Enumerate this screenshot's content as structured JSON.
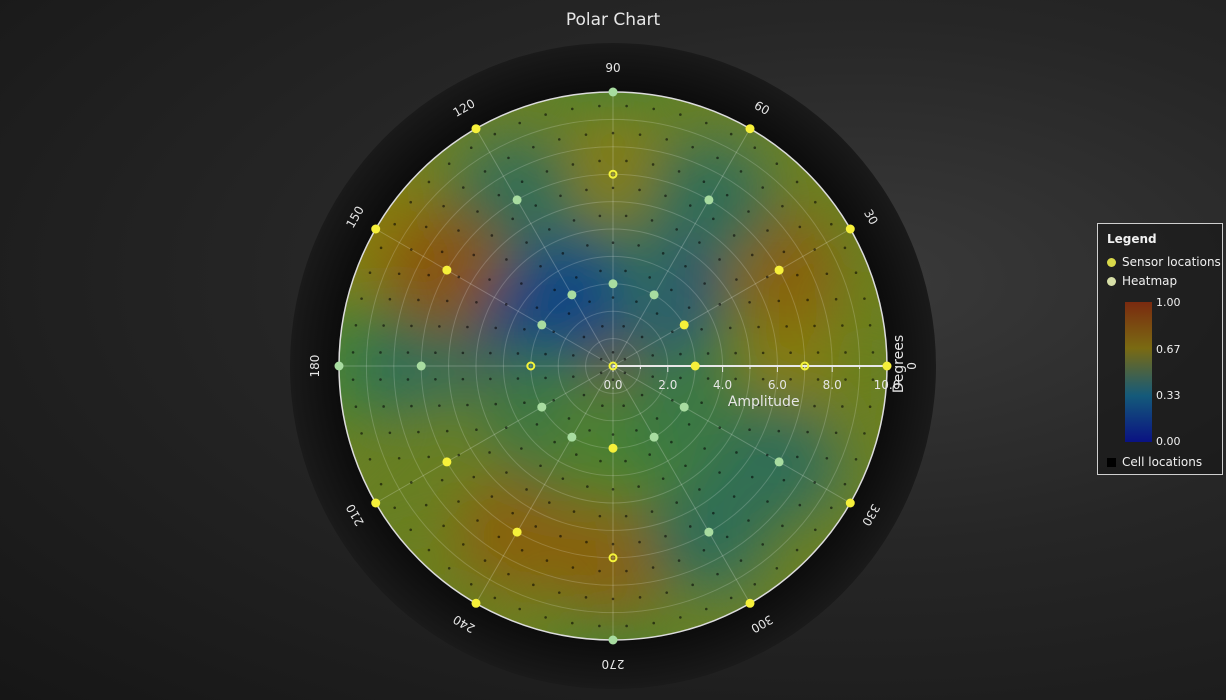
{
  "chart_data": {
    "type": "heatmap",
    "subtype": "polar",
    "title": "Polar Chart",
    "radial_axis": {
      "label": "Amplitude",
      "range": [
        0,
        10
      ],
      "ticks": [
        "0.0",
        "2.0",
        "4.0",
        "6.0",
        "8.0",
        "10.0"
      ]
    },
    "angular_axis": {
      "label": "Degrees",
      "ticks": [
        "0",
        "30",
        "60",
        "90",
        "120",
        "150",
        "180",
        "210",
        "240",
        "270",
        "300",
        "330"
      ],
      "tick_values": [
        0,
        30,
        60,
        90,
        120,
        150,
        180,
        210,
        240,
        270,
        300,
        330
      ]
    },
    "grid": true,
    "sensors": [
      {
        "angle": 0,
        "amplitude": 0,
        "value": 0.9
      },
      {
        "angle": 0,
        "amplitude": 3,
        "value": 0.6
      },
      {
        "angle": 0,
        "amplitude": 7,
        "value": 0.7
      },
      {
        "angle": 0,
        "amplitude": 10,
        "value": 0.6
      },
      {
        "angle": 30,
        "amplitude": 10,
        "value": 0.6
      },
      {
        "angle": 60,
        "amplitude": 10,
        "value": 0.6
      },
      {
        "angle": 90,
        "amplitude": 10,
        "value": 0.5
      },
      {
        "angle": 120,
        "amplitude": 10,
        "value": 0.6
      },
      {
        "angle": 150,
        "amplitude": 10,
        "value": 0.7
      },
      {
        "angle": 180,
        "amplitude": 10,
        "value": 0.5
      },
      {
        "angle": 210,
        "amplitude": 10,
        "value": 0.6
      },
      {
        "angle": 240,
        "amplitude": 10,
        "value": 0.6
      },
      {
        "angle": 270,
        "amplitude": 10,
        "value": 0.5
      },
      {
        "angle": 300,
        "amplitude": 10,
        "value": 0.6
      },
      {
        "angle": 330,
        "amplitude": 10,
        "value": 0.6
      },
      {
        "angle": 90,
        "amplitude": 7,
        "value": 0.7
      },
      {
        "angle": 270,
        "amplitude": 7,
        "value": 0.8
      },
      {
        "angle": 180,
        "amplitude": 3,
        "value": 0.85
      },
      {
        "angle": 180,
        "amplitude": 7,
        "value": 0.4
      },
      {
        "angle": 30,
        "amplitude": 7,
        "value": 0.8
      },
      {
        "angle": 60,
        "amplitude": 7,
        "value": 0.4
      },
      {
        "angle": 120,
        "amplitude": 7,
        "value": 0.4
      },
      {
        "angle": 150,
        "amplitude": 7,
        "value": 0.85
      },
      {
        "angle": 210,
        "amplitude": 7,
        "value": 0.6
      },
      {
        "angle": 240,
        "amplitude": 7,
        "value": 0.8
      },
      {
        "angle": 300,
        "amplitude": 7,
        "value": 0.4
      },
      {
        "angle": 330,
        "amplitude": 7,
        "value": 0.4
      },
      {
        "angle": 30,
        "amplitude": 3,
        "value": 0.55
      },
      {
        "angle": 60,
        "amplitude": 3,
        "value": 0.2
      },
      {
        "angle": 90,
        "amplitude": 3,
        "value": 0.45
      },
      {
        "angle": 120,
        "amplitude": 3,
        "value": 0.25
      },
      {
        "angle": 150,
        "amplitude": 3,
        "value": 0.2
      },
      {
        "angle": 210,
        "amplitude": 3,
        "value": 0.45
      },
      {
        "angle": 240,
        "amplitude": 3,
        "value": 0.45
      },
      {
        "angle": 270,
        "amplitude": 3,
        "value": 0.55
      },
      {
        "angle": 300,
        "amplitude": 3,
        "value": 0.5
      },
      {
        "angle": 330,
        "amplitude": 3,
        "value": 0.45
      }
    ],
    "legend": {
      "title": "Legend",
      "placement": "right",
      "entries": [
        {
          "label": "Sensor locations",
          "color": "#d9d94a"
        },
        {
          "label": "Heatmap",
          "color": "#d8e0a8"
        },
        {
          "label": "Cell locations",
          "color": "#000000"
        }
      ],
      "scale_ticks": [
        "1.00",
        "0.67",
        "0.33",
        "0.00"
      ],
      "scale_values": [
        1.0,
        0.67,
        0.33,
        0.0
      ]
    },
    "colors": {
      "low": "#0a1a8a",
      "mid_low": "#1a6a8a",
      "mid": "#6a8a1a",
      "mid_high": "#8a7a0a",
      "high": "#8a2a0a"
    }
  }
}
